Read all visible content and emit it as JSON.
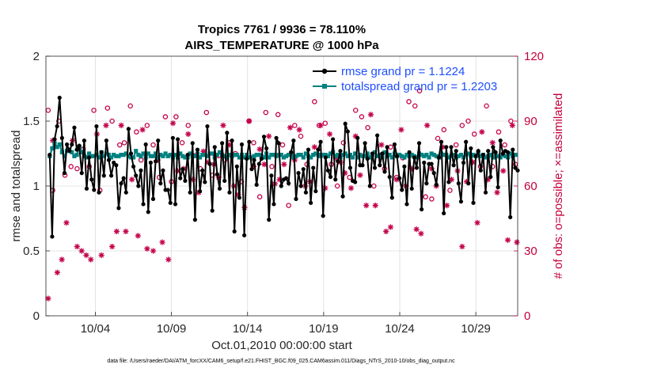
{
  "colors": {
    "rmse": "#000000",
    "totalspread": "#008080",
    "obs": "#c4004a",
    "grid": "#dcdcdc",
    "axis": "#262626",
    "legend_text": "#1f4fff"
  },
  "chart_data": {
    "type": "line",
    "title": "Tropics 7761 / 9936 = 78.110%",
    "subtitle": "AIRS_TEMPERATURE @ 1000 hPa",
    "xlabel": "Oct.01,2010 00:00:00 start",
    "ylabel": "rmse and totalspread",
    "y2label": "# of obs: o=possible; ×=assimilated",
    "x_tick_labels": [
      "10/04",
      "10/09",
      "10/14",
      "10/19",
      "10/24",
      "10/29"
    ],
    "x_tick_days": [
      3.5,
      8.5,
      13.5,
      18.5,
      23.5,
      28.5
    ],
    "xlim": [
      0.25,
      31.25
    ],
    "ylim": [
      0,
      2
    ],
    "y_ticks": [
      "0",
      "0.5",
      "1",
      "1.5",
      "2"
    ],
    "y2lim": [
      0,
      120
    ],
    "y2_ticks": [
      "0",
      "30",
      "60",
      "90",
      "120"
    ],
    "grid": true,
    "legend_position": "top-right",
    "series": [
      {
        "name": "rmse grand pr = 1.1224",
        "axis": "left",
        "marker": "filled-circle",
        "values": [
          1.24,
          0.61,
          1.36,
          1.46,
          1.68,
          1.37,
          1.1,
          1.32,
          1.27,
          1.32,
          1.45,
          1.28,
          1.31,
          1.1,
          1.35,
          0.98,
          1.22,
          1.05,
          0.97,
          1.46,
          0.95,
          1.26,
          1.08,
          1.35,
          1.2,
          1.08,
          1.18,
          1.16,
          0.83,
          1.02,
          1.06,
          0.95,
          1.44,
          1.25,
          1.15,
          1.08,
          1.0,
          1.12,
          0.86,
          1.32,
          0.8,
          1.18,
          0.9,
          1.19,
          1.35,
          1.02,
          1.12,
          0.97,
          0.97,
          0.87,
          1.37,
          0.86,
          1.36,
          1.06,
          1.13,
          1.04,
          1.24,
          0.95,
          1.33,
          0.74,
          1.28,
          0.96,
          1.12,
          1.03,
          1.46,
          1.17,
          0.81,
          1.3,
          1.09,
          0.98,
          1.33,
          1.04,
          1.41,
          0.95,
          1.35,
          0.65,
          1.15,
          0.91,
          1.32,
          0.62,
          1.21,
          1.34,
          1.13,
          1.2,
          1.01,
          1.17,
          1.21,
          1.38,
          1.29,
          0.74,
          1.08,
          0.86,
          1.37,
          1.33,
          1.0,
          1.05,
          1.06,
          1.02,
          1.26,
          1.35,
          0.9,
          1.1,
          1.0,
          1.13,
          0.95,
          1.28,
          0.87,
          1.14,
          0.96,
          1.28,
          1.34,
          0.77,
          1.22,
          1.12,
          1.07,
          1.36,
          1.05,
          1.19,
          1.27,
          0.92,
          1.48,
          1.42,
          1.14,
          1.04,
          1.03,
          1.37,
          1.16,
          1.16,
          1.33,
          1.21,
          1.0,
          1.25,
          1.14,
          1.39,
          1.16,
          1.25,
          1.11,
          1.3,
          1.07,
          0.91,
          1.32,
          1.23,
          1.06,
          0.97,
          1.15,
          0.86,
          1.26,
          0.98,
          1.22,
          1.14,
          1.33,
          0.82,
          1.18,
          1.02,
          1.17,
          1.17,
          1.1,
          1.01,
          1.22,
          1.34,
          0.79,
          1.3,
          1.03,
          1.3,
          1.16,
          1.27,
          1.02,
          0.88,
          1.18,
          1.34,
          1.02,
          1.29,
          0.87,
          1.23,
          1.27,
          1.12,
          1.24,
          0.95,
          1.27,
          1.07,
          1.3,
          1.26,
          0.99,
          1.35,
          1.25,
          1.27,
          1.26,
          0.76,
          1.28,
          1.14,
          1.12
        ]
      },
      {
        "name": "totalspread grand pr = 1.2203",
        "axis": "left",
        "marker": "filled-square",
        "values": [
          1.23,
          1.29,
          1.33,
          1.3,
          1.32,
          1.26,
          1.23,
          1.27,
          1.28,
          1.26,
          1.23,
          1.24,
          1.3,
          1.26,
          1.23,
          1.22,
          1.25,
          1.23,
          1.23,
          1.24,
          1.22,
          1.26,
          1.23,
          1.25,
          1.24,
          1.22,
          1.24,
          1.23,
          1.23,
          1.24,
          1.24,
          1.25,
          1.23,
          1.22,
          1.22,
          1.27,
          1.24,
          1.23,
          1.25,
          1.22,
          1.25,
          1.23,
          1.23,
          1.25,
          1.22,
          1.24,
          1.23,
          1.25,
          1.23,
          1.24,
          1.22,
          1.24,
          1.22,
          1.25,
          1.23,
          1.22,
          1.22,
          1.25,
          1.23,
          1.23,
          1.25,
          1.22,
          1.24,
          1.24,
          1.23,
          1.25,
          1.25,
          1.22,
          1.24,
          1.26,
          1.24,
          1.23,
          1.22,
          1.24,
          1.23,
          1.24,
          1.24,
          1.22,
          1.24,
          1.22,
          1.24,
          1.22,
          1.22,
          1.23,
          1.24,
          1.24,
          1.23,
          1.22,
          1.25,
          1.22,
          1.24,
          1.24,
          1.23,
          1.24,
          1.24,
          1.22,
          1.23,
          1.24,
          1.25,
          1.22,
          1.23,
          1.24,
          1.24,
          1.22,
          1.25,
          1.23,
          1.22,
          1.24,
          1.25,
          1.24,
          1.23,
          1.24,
          1.24,
          1.23,
          1.25,
          1.26,
          1.23,
          1.24,
          1.22,
          1.24,
          1.25,
          1.23,
          1.24,
          1.22,
          1.25,
          1.22,
          1.24,
          1.23,
          1.23,
          1.25,
          1.22,
          1.24,
          1.26,
          1.23,
          1.24,
          1.22,
          1.26,
          1.23,
          1.24,
          1.22,
          1.25,
          1.23,
          1.24,
          1.23,
          1.22,
          1.24,
          1.23,
          1.24,
          1.23,
          1.22,
          1.25,
          1.24,
          1.23,
          1.24,
          1.22,
          1.25,
          1.24,
          1.23,
          1.22,
          1.25,
          1.24,
          1.24,
          1.22,
          1.23,
          1.24,
          1.22,
          1.23,
          1.24,
          1.22,
          1.24,
          1.25,
          1.23,
          1.24,
          1.23,
          1.25,
          1.23,
          1.24,
          1.22,
          1.23,
          1.24,
          1.22,
          1.25,
          1.23,
          1.22,
          1.24,
          1.23,
          1.22,
          1.25,
          1.23,
          1.24
        ]
      },
      {
        "name": "# of obs possible",
        "axis": "right",
        "marker": "open-circle",
        "x": [
          0.4,
          0.7,
          1.1,
          1.5,
          1.9,
          2.3,
          2.7,
          3.1,
          3.4,
          3.8,
          4.3,
          4.6,
          5.1,
          5.4,
          5.8,
          6.2,
          6.5,
          6.9,
          7.3,
          7.7,
          8.1,
          8.5,
          8.8,
          9.2,
          9.6,
          10.0,
          10.4,
          10.8,
          11.2,
          11.6,
          12.0,
          12.3,
          12.7,
          13.1,
          13.6,
          13.9,
          14.3,
          14.7,
          15.1,
          15.5,
          15.8,
          16.2,
          16.6,
          17.0,
          17.4,
          17.9,
          18.2,
          18.6,
          19.0,
          19.4,
          19.8,
          20.2,
          20.6,
          21.0,
          21.4,
          21.8,
          22.2,
          22.5,
          22.9,
          23.3,
          23.7,
          24.1,
          24.5,
          24.8,
          25.2,
          25.6,
          26.0,
          26.4,
          26.8,
          27.2,
          27.6,
          28.0,
          28.4,
          28.8,
          29.2,
          29.6,
          30.0,
          30.4,
          30.8,
          31.1
        ],
        "values": [
          95,
          58,
          90,
          65,
          69,
          68,
          77,
          69,
          95,
          58,
          96,
          90,
          79,
          80,
          97,
          85,
          72,
          88,
          79,
          64,
          92,
          62,
          92,
          80,
          88,
          74,
          68,
          94,
          65,
          74,
          72,
          80,
          75,
          62,
          90,
          80,
          55,
          94,
          69,
          93,
          79,
          51,
          88,
          83,
          70,
          99,
          88,
          89,
          70,
          60,
          80,
          64,
          95,
          92,
          87,
          60,
          74,
          68,
          78,
          64,
          73,
          99,
          97,
          104,
          55,
          54,
          82,
          86,
          58,
          79,
          88,
          90,
          84,
          69,
          97,
          69,
          85,
          79,
          90,
          70
        ]
      },
      {
        "name": "# of obs assimilated",
        "axis": "right",
        "marker": "asterisk",
        "x": [
          0.4,
          0.7,
          1.0,
          1.3,
          1.6,
          2.0,
          2.3,
          2.6,
          2.9,
          3.2,
          3.6,
          3.9,
          4.2,
          4.6,
          4.9,
          5.2,
          5.5,
          5.9,
          6.3,
          6.6,
          6.9,
          7.3,
          7.6,
          7.9,
          8.3,
          8.6,
          8.9,
          9.3,
          9.6,
          9.9,
          10.3,
          10.6,
          10.9,
          11.3,
          11.6,
          11.9,
          12.3,
          12.6,
          12.9,
          13.3,
          13.6,
          13.9,
          14.3,
          14.6,
          14.9,
          15.3,
          15.6,
          15.9,
          16.3,
          16.6,
          16.9,
          17.3,
          17.6,
          17.9,
          18.3,
          18.6,
          18.9,
          19.3,
          19.6,
          19.9,
          20.3,
          20.6,
          20.9,
          21.3,
          21.6,
          21.9,
          22.3,
          22.6,
          22.9,
          23.3,
          23.6,
          23.9,
          24.3,
          24.6,
          24.9,
          25.3,
          25.6,
          25.9,
          26.3,
          26.6,
          26.9,
          27.3,
          27.6,
          27.9,
          28.3,
          28.6,
          28.9,
          29.3,
          29.6,
          29.9,
          30.3,
          30.6,
          30.9,
          31.2
        ],
        "values": [
          8,
          81,
          20,
          26,
          43,
          81,
          32,
          30,
          28,
          26,
          84,
          28,
          88,
          32,
          39,
          88,
          39,
          63,
          37,
          86,
          31,
          30,
          72,
          34,
          26,
          89,
          67,
          68,
          84,
          63,
          57,
          76,
          71,
          70,
          64,
          88,
          79,
          60,
          56,
          50,
          90,
          69,
          77,
          70,
          83,
          61,
          63,
          70,
          87,
          72,
          86,
          60,
          62,
          78,
          88,
          59,
          84,
          73,
          71,
          66,
          59,
          83,
          65,
          51,
          93,
          51,
          79,
          39,
          41,
          63,
          86,
          60,
          68,
          40,
          38,
          88,
          68,
          60,
          78,
          51,
          63,
          67,
          32,
          62,
          71,
          43,
          85,
          63,
          80,
          57,
          67,
          35,
          88,
          34
        ]
      }
    ]
  },
  "footnote": "data file: /Users/raeder/DAI/ATM_forcXX/CAM6_setup/f.e21.FHIST_BGC.f09_025.CAM6assim.011/Diags_NTrS_2010-10/obs_diag_output.nc"
}
